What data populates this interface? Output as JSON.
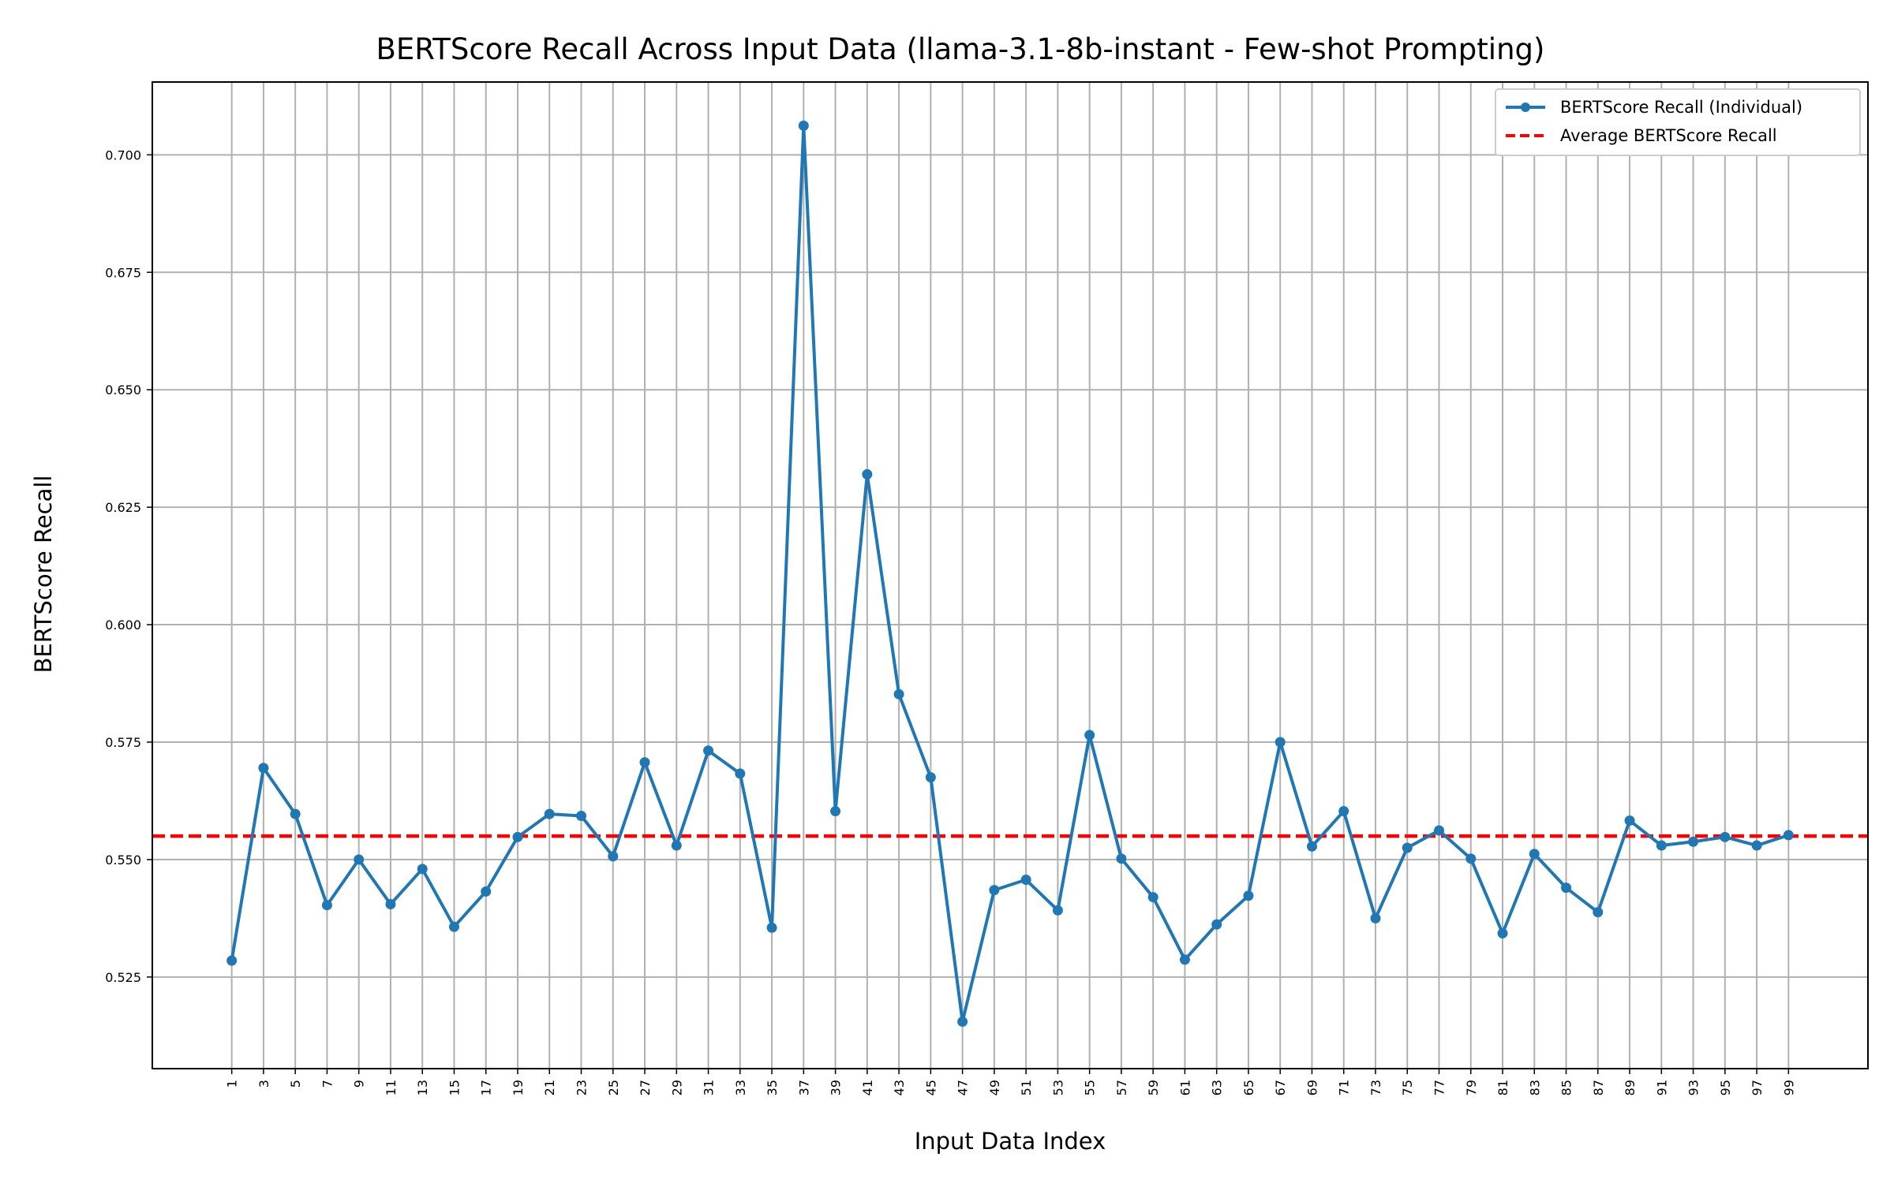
{
  "chart_data": {
    "type": "line",
    "title": "BERTScore Recall Across Input Data (llama-3.1-8b-instant - Few-shot Prompting)",
    "xlabel": "Input Data Index",
    "ylabel": "BERTScore Recall",
    "x": [
      1,
      3,
      5,
      7,
      9,
      11,
      13,
      15,
      17,
      19,
      21,
      23,
      25,
      27,
      29,
      31,
      33,
      35,
      37,
      39,
      41,
      43,
      45,
      47,
      49,
      51,
      53,
      55,
      57,
      59,
      61,
      63,
      65,
      67,
      69,
      71,
      73,
      75,
      77,
      79,
      81,
      83,
      85,
      87,
      89,
      91,
      93,
      95,
      97,
      99
    ],
    "xticks": [
      "1",
      "3",
      "5",
      "7",
      "9",
      "11",
      "13",
      "15",
      "17",
      "19",
      "21",
      "23",
      "25",
      "27",
      "29",
      "31",
      "33",
      "35",
      "37",
      "39",
      "41",
      "43",
      "45",
      "47",
      "49",
      "51",
      "53",
      "55",
      "57",
      "59",
      "61",
      "63",
      "65",
      "67",
      "69",
      "71",
      "73",
      "75",
      "77",
      "79",
      "81",
      "83",
      "85",
      "87",
      "89",
      "91",
      "93",
      "95",
      "97",
      "99"
    ],
    "yticks": [
      "0.525",
      "0.550",
      "0.575",
      "0.600",
      "0.625",
      "0.650",
      "0.675",
      "0.700"
    ],
    "ytick_values": [
      0.525,
      0.55,
      0.575,
      0.6,
      0.625,
      0.65,
      0.675,
      0.7
    ],
    "xlim": [
      -4,
      104
    ],
    "ylim": [
      0.5055,
      0.7155
    ],
    "grid": true,
    "legend_position": "top-right",
    "series": [
      {
        "name": "BERTScore Recall (Individual)",
        "color": "#1f77b4",
        "style": "solid-with-markers",
        "values": [
          0.5285,
          0.5695,
          0.5597,
          0.5403,
          0.55,
          0.5405,
          0.548,
          0.5357,
          0.5432,
          0.5548,
          0.5597,
          0.5593,
          0.5507,
          0.5707,
          0.553,
          0.5732,
          0.5683,
          0.5355,
          0.7062,
          0.5603,
          0.632,
          0.5852,
          0.5675,
          0.5155,
          0.5435,
          0.5457,
          0.5392,
          0.5765,
          0.5502,
          0.542,
          0.5287,
          0.5362,
          0.5423,
          0.575,
          0.5528,
          0.5603,
          0.5375,
          0.5525,
          0.5562,
          0.5502,
          0.5343,
          0.5512,
          0.544,
          0.5388,
          0.5583,
          0.553,
          0.5538,
          0.5548,
          0.553,
          0.5552
        ]
      },
      {
        "name": "Average BERTScore Recall",
        "color": "#ff0000",
        "style": "dashed",
        "value": 0.555
      }
    ]
  }
}
